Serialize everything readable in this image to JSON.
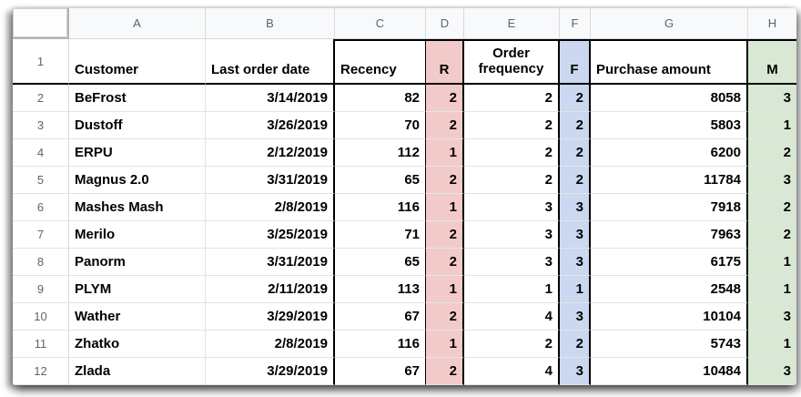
{
  "app": {
    "type": "spreadsheet"
  },
  "colors": {
    "r_column_bg": "#f3caca",
    "f_column_bg": "#cbd8f0",
    "m_column_bg": "#d9e8d4",
    "header_text": "#5f6368",
    "block_border": "#000000"
  },
  "column_letters": [
    "A",
    "B",
    "C",
    "D",
    "E",
    "F",
    "G",
    "H"
  ],
  "header_row": {
    "row_number": "1",
    "customer": "Customer",
    "last_order_date": "Last order date",
    "recency": "Recency",
    "r": "R",
    "order_frequency": "Order frequency",
    "f": "F",
    "purchase_amount": "Purchase amount",
    "m": "M"
  },
  "rows": [
    {
      "num": "2",
      "customer": "BeFrost",
      "last_order_date": "3/14/2019",
      "recency": "82",
      "r": "2",
      "order_frequency": "2",
      "f": "2",
      "purchase_amount": "8058",
      "m": "3"
    },
    {
      "num": "3",
      "customer": "Dustoff",
      "last_order_date": "3/26/2019",
      "recency": "70",
      "r": "2",
      "order_frequency": "2",
      "f": "2",
      "purchase_amount": "5803",
      "m": "1"
    },
    {
      "num": "4",
      "customer": "ERPU",
      "last_order_date": "2/12/2019",
      "recency": "112",
      "r": "1",
      "order_frequency": "2",
      "f": "2",
      "purchase_amount": "6200",
      "m": "2"
    },
    {
      "num": "5",
      "customer": "Magnus 2.0",
      "last_order_date": "3/31/2019",
      "recency": "65",
      "r": "2",
      "order_frequency": "2",
      "f": "2",
      "purchase_amount": "11784",
      "m": "3"
    },
    {
      "num": "6",
      "customer": "Mashes Mash",
      "last_order_date": "2/8/2019",
      "recency": "116",
      "r": "1",
      "order_frequency": "3",
      "f": "3",
      "purchase_amount": "7918",
      "m": "2"
    },
    {
      "num": "7",
      "customer": "Merilo",
      "last_order_date": "3/25/2019",
      "recency": "71",
      "r": "2",
      "order_frequency": "3",
      "f": "3",
      "purchase_amount": "7963",
      "m": "2"
    },
    {
      "num": "8",
      "customer": "Panorm",
      "last_order_date": "3/31/2019",
      "recency": "65",
      "r": "2",
      "order_frequency": "3",
      "f": "3",
      "purchase_amount": "6175",
      "m": "1"
    },
    {
      "num": "9",
      "customer": "PLYM",
      "last_order_date": "2/11/2019",
      "recency": "113",
      "r": "1",
      "order_frequency": "1",
      "f": "1",
      "purchase_amount": "2548",
      "m": "1"
    },
    {
      "num": "10",
      "customer": "Wather",
      "last_order_date": "3/29/2019",
      "recency": "67",
      "r": "2",
      "order_frequency": "4",
      "f": "3",
      "purchase_amount": "10104",
      "m": "3"
    },
    {
      "num": "11",
      "customer": "Zhatko",
      "last_order_date": "2/8/2019",
      "recency": "116",
      "r": "1",
      "order_frequency": "2",
      "f": "2",
      "purchase_amount": "5743",
      "m": "1"
    },
    {
      "num": "12",
      "customer": "Zlada",
      "last_order_date": "3/29/2019",
      "recency": "67",
      "r": "2",
      "order_frequency": "4",
      "f": "3",
      "purchase_amount": "10484",
      "m": "3"
    }
  ]
}
